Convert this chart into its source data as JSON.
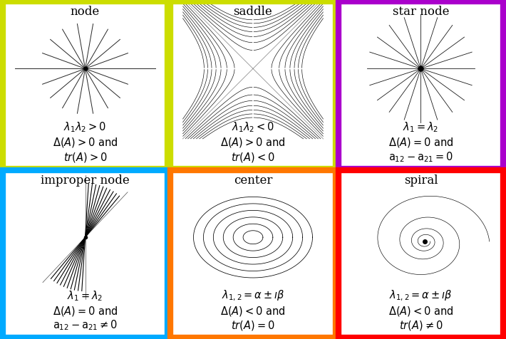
{
  "border_colors": [
    "#ccdd00",
    "#ccdd00",
    "#aa00cc",
    "#00aaff",
    "#ff7700",
    "#ff0000"
  ],
  "titles": [
    "node",
    "saddle",
    "star node",
    "improper node",
    "center",
    "spiral"
  ],
  "math_labels": [
    [
      "$\\lambda_1\\lambda_2 > 0$",
      "$\\Delta(A) > 0$ and",
      "$tr(A)  > 0$"
    ],
    [
      "$\\lambda_1\\lambda_2 < 0$",
      "$\\Delta(A)> 0$ and",
      "$tr(A) < 0$"
    ],
    [
      "$\\lambda_1 = \\lambda_2$",
      "$\\Delta(A) = 0$ and",
      "$\\mathtt{a}_{12} - \\mathtt{a}_{21} = 0$"
    ],
    [
      "$\\lambda_1 = \\lambda_2$",
      "$\\Delta(A) = 0$ and",
      "$\\mathtt{a}_{12} - \\mathtt{a}_{21} \\neq 0$"
    ],
    [
      "$\\lambda_{1,2} = \\alpha \\pm \\imath\\beta$",
      "$\\Delta(A)< 0$ and",
      "$tr(A)  = 0$"
    ],
    [
      "$\\lambda_{1,2} = \\alpha \\pm \\imath\\beta$",
      "$\\Delta(A) < 0$ and",
      "$tr(A) \\neq 0$"
    ]
  ],
  "background_color": "#ffffff",
  "border_width": 6,
  "title_fontsize": 12,
  "label_fontsize": 10.5
}
